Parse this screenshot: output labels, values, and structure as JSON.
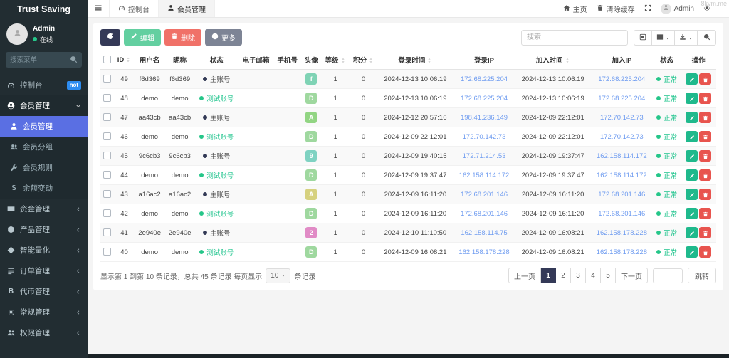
{
  "watermark": "8kym.me",
  "sidebar": {
    "brand": "Trust Saving",
    "user": {
      "name": "Admin",
      "status_label": "在线"
    },
    "search_placeholder": "搜索菜单",
    "menu": [
      {
        "id": "dashboard",
        "label": "控制台",
        "icon": "dashboard-icon",
        "badge": "hot"
      },
      {
        "id": "members",
        "label": "会员管理",
        "icon": "user-circle-icon",
        "expanded": true,
        "children": [
          {
            "id": "member-list",
            "label": "会员管理",
            "icon": "user-icon",
            "active": true
          },
          {
            "id": "member-groups",
            "label": "会员分组",
            "icon": "users-icon"
          },
          {
            "id": "member-rules",
            "label": "会员规则",
            "icon": "wrench-icon"
          },
          {
            "id": "balance-changes",
            "label": "余额变动",
            "icon": "dollar-icon"
          }
        ]
      },
      {
        "id": "funds",
        "label": "资金管理",
        "icon": "funds-icon",
        "collapsible": true
      },
      {
        "id": "products",
        "label": "产品管理",
        "icon": "product-icon",
        "collapsible": true
      },
      {
        "id": "quant",
        "label": "智能量化",
        "icon": "quant-icon",
        "collapsible": true
      },
      {
        "id": "orders",
        "label": "订单管理",
        "icon": "orders-icon",
        "collapsible": true
      },
      {
        "id": "tokens",
        "label": "代币管理",
        "icon": "token-icon",
        "collapsible": true
      },
      {
        "id": "general",
        "label": "常规管理",
        "icon": "settings-icon",
        "collapsible": true
      },
      {
        "id": "permissions",
        "label": "权限管理",
        "icon": "permission-icon",
        "collapsible": true
      }
    ]
  },
  "topbar": {
    "tabs": [
      {
        "id": "dashboard",
        "label": "控制台",
        "icon": "dashboard-icon"
      },
      {
        "id": "members",
        "label": "会员管理",
        "icon": "user-icon",
        "active": true
      }
    ],
    "home_label": "主页",
    "clear_cache_label": "清除缓存",
    "user_name": "Admin"
  },
  "toolbar": {
    "edit_label": "编辑",
    "delete_label": "删除",
    "more_label": "更多",
    "search_placeholder": "搜索"
  },
  "table": {
    "columns": [
      {
        "key": "id",
        "label": "ID",
        "sortable": true
      },
      {
        "key": "username",
        "label": "用户名"
      },
      {
        "key": "nick",
        "label": "昵称"
      },
      {
        "key": "account_type",
        "label": "状态"
      },
      {
        "key": "email",
        "label": "电子邮箱"
      },
      {
        "key": "phone",
        "label": "手机号"
      },
      {
        "key": "avatar",
        "label": "头像"
      },
      {
        "key": "level",
        "label": "等级",
        "sortable": true
      },
      {
        "key": "points",
        "label": "积分",
        "sortable": true
      },
      {
        "key": "login_time",
        "label": "登录时间",
        "sortable": true
      },
      {
        "key": "login_ip",
        "label": "登录IP"
      },
      {
        "key": "join_time",
        "label": "加入时间",
        "sortable": true
      },
      {
        "key": "join_ip",
        "label": "加入IP"
      },
      {
        "key": "state",
        "label": "状态"
      },
      {
        "key": "ops",
        "label": "操作"
      }
    ],
    "account_type_colors": {
      "main": "dark",
      "test": "green"
    },
    "rows": [
      {
        "id": "49",
        "username": "f6d369",
        "nick": "f6d369",
        "account_type": "主账号",
        "account_kind": "main",
        "email": "",
        "phone": "",
        "avatar_char": "f",
        "avatar_bg": "#7fd3b5",
        "level": "1",
        "points": "0",
        "login_time": "2024-12-13 10:06:19",
        "login_ip": "172.68.225.204",
        "join_time": "2024-12-13 10:06:19",
        "join_ip": "172.68.225.204",
        "state": "正常"
      },
      {
        "id": "48",
        "username": "demo",
        "nick": "demo",
        "account_type": "测试账号",
        "account_kind": "test",
        "email": "",
        "phone": "",
        "avatar_char": "D",
        "avatar_bg": "#9fd89f",
        "level": "1",
        "points": "0",
        "login_time": "2024-12-13 10:06:19",
        "login_ip": "172.68.225.204",
        "join_time": "2024-12-13 10:06:19",
        "join_ip": "172.68.225.204",
        "state": "正常"
      },
      {
        "id": "47",
        "username": "aa43cb",
        "nick": "aa43cb",
        "account_type": "主账号",
        "account_kind": "main",
        "email": "",
        "phone": "",
        "avatar_char": "A",
        "avatar_bg": "#92d583",
        "level": "1",
        "points": "0",
        "login_time": "2024-12-12 20:57:16",
        "login_ip": "198.41.236.149",
        "join_time": "2024-12-09 22:12:01",
        "join_ip": "172.70.142.73",
        "state": "正常"
      },
      {
        "id": "46",
        "username": "demo",
        "nick": "demo",
        "account_type": "测试账号",
        "account_kind": "test",
        "email": "",
        "phone": "",
        "avatar_char": "D",
        "avatar_bg": "#9fd89f",
        "level": "1",
        "points": "0",
        "login_time": "2024-12-09 22:12:01",
        "login_ip": "172.70.142.73",
        "join_time": "2024-12-09 22:12:01",
        "join_ip": "172.70.142.73",
        "state": "正常"
      },
      {
        "id": "45",
        "username": "9c6cb3",
        "nick": "9c6cb3",
        "account_type": "主账号",
        "account_kind": "main",
        "email": "",
        "phone": "",
        "avatar_char": "9",
        "avatar_bg": "#7fd2c2",
        "level": "1",
        "points": "0",
        "login_time": "2024-12-09 19:40:15",
        "login_ip": "172.71.214.53",
        "join_time": "2024-12-09 19:37:47",
        "join_ip": "162.158.114.172",
        "state": "正常"
      },
      {
        "id": "44",
        "username": "demo",
        "nick": "demo",
        "account_type": "测试账号",
        "account_kind": "test",
        "email": "",
        "phone": "",
        "avatar_char": "D",
        "avatar_bg": "#9fd89f",
        "level": "1",
        "points": "0",
        "login_time": "2024-12-09 19:37:47",
        "login_ip": "162.158.114.172",
        "join_time": "2024-12-09 19:37:47",
        "join_ip": "162.158.114.172",
        "state": "正常"
      },
      {
        "id": "43",
        "username": "a16ac2",
        "nick": "a16ac2",
        "account_type": "主账号",
        "account_kind": "main",
        "email": "",
        "phone": "",
        "avatar_char": "A",
        "avatar_bg": "#d6d17f",
        "level": "1",
        "points": "0",
        "login_time": "2024-12-09 16:11:20",
        "login_ip": "172.68.201.146",
        "join_time": "2024-12-09 16:11:20",
        "join_ip": "172.68.201.146",
        "state": "正常"
      },
      {
        "id": "42",
        "username": "demo",
        "nick": "demo",
        "account_type": "测试账号",
        "account_kind": "test",
        "email": "",
        "phone": "",
        "avatar_char": "D",
        "avatar_bg": "#9fd89f",
        "level": "1",
        "points": "0",
        "login_time": "2024-12-09 16:11:20",
        "login_ip": "172.68.201.146",
        "join_time": "2024-12-09 16:11:20",
        "join_ip": "172.68.201.146",
        "state": "正常"
      },
      {
        "id": "41",
        "username": "2e940e",
        "nick": "2e940e",
        "account_type": "主账号",
        "account_kind": "main",
        "email": "",
        "phone": "",
        "avatar_char": "2",
        "avatar_bg": "#e18bc6",
        "level": "1",
        "points": "0",
        "login_time": "2024-12-10 11:10:50",
        "login_ip": "162.158.114.75",
        "join_time": "2024-12-09 16:08:21",
        "join_ip": "162.158.178.228",
        "state": "正常"
      },
      {
        "id": "40",
        "username": "demo",
        "nick": "demo",
        "account_type": "测试账号",
        "account_kind": "test",
        "email": "",
        "phone": "",
        "avatar_char": "D",
        "avatar_bg": "#9fd89f",
        "level": "1",
        "points": "0",
        "login_time": "2024-12-09 16:08:21",
        "login_ip": "162.158.178.228",
        "join_time": "2024-12-09 16:08:21",
        "join_ip": "162.158.178.228",
        "state": "正常"
      }
    ]
  },
  "footer": {
    "info": "显示第 1 到第 10 条记录，总共 45 条记录 每页显示",
    "page_size": "10",
    "info_suffix": "条记录",
    "pages": [
      "上一页",
      "1",
      "2",
      "3",
      "4",
      "5",
      "下一页"
    ],
    "active_page": "1",
    "jump_label": "跳转"
  },
  "colors": {
    "accent_blue": "#5a6fe3",
    "sidebar_bg": "#222d32",
    "success_green": "#1fc48d",
    "danger_red": "#e8544e",
    "link_blue": "#6f9cf0",
    "dark_navy": "#343957"
  }
}
